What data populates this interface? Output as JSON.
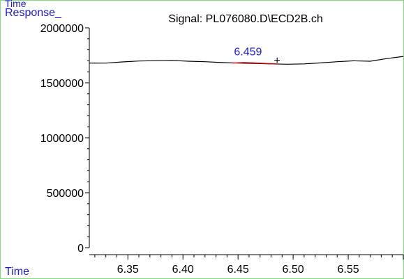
{
  "chart_data": {
    "type": "line",
    "title": "Signal: PL076080.D\\ECD2B.ch",
    "top_corner_label": "Time",
    "ylabel": "Response_",
    "xlabel": "Time",
    "xlim": [
      6.315,
      6.6
    ],
    "ylim": [
      0,
      2000000
    ],
    "x_ticks": [
      6.35,
      6.4,
      6.45,
      6.5,
      6.55
    ],
    "x_tick_labels": [
      "6.35",
      "6.40",
      "6.45",
      "6.50",
      "6.55"
    ],
    "y_ticks": [
      0,
      500000,
      1000000,
      1500000,
      2000000
    ],
    "y_tick_labels": [
      "0",
      "500000",
      "1000000",
      "1500000",
      "2000000"
    ],
    "grid": false,
    "series": [
      {
        "color": "#000000",
        "x": [
          6.315,
          6.33,
          6.345,
          6.36,
          6.375,
          6.39,
          6.405,
          6.42,
          6.435,
          6.45,
          6.465,
          6.48,
          6.495,
          6.51,
          6.525,
          6.54,
          6.555,
          6.57,
          6.585,
          6.6
        ],
        "y": [
          1680000,
          1679000,
          1690000,
          1698000,
          1701000,
          1704000,
          1696000,
          1692000,
          1684000,
          1679000,
          1676000,
          1672000,
          1669000,
          1672000,
          1681000,
          1692000,
          1700000,
          1696000,
          1720000,
          1740000
        ]
      },
      {
        "color": "#cc0000",
        "x": [
          6.445,
          6.455,
          6.465,
          6.475,
          6.485
        ],
        "y": [
          1680000,
          1684000,
          1681000,
          1676000,
          1671000
        ]
      }
    ],
    "peak_label": {
      "text": "6.459",
      "x": 6.459,
      "y": 1675000,
      "color": "#1a1adf"
    },
    "marker": {
      "text": "+",
      "x": 6.4855,
      "y": 1710000
    }
  },
  "colors": {
    "frame": "#7fdc7f",
    "axis": "#000000",
    "blue_text": "#1a1adf",
    "text": "#000000"
  }
}
